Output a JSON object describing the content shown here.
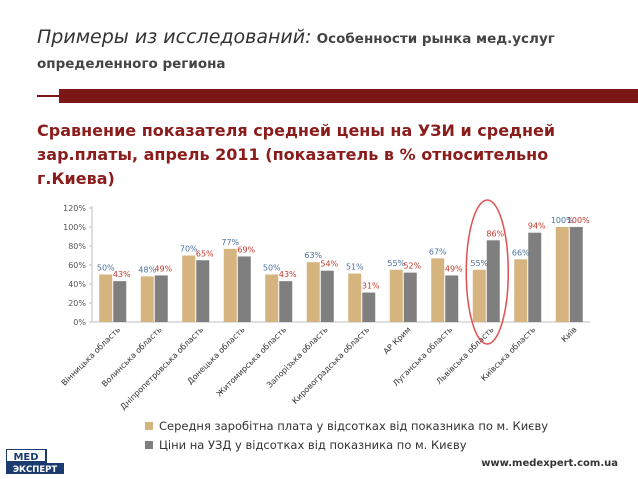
{
  "header": {
    "italic": "Примеры из исследований:",
    "bold": "Особенности рынка мед.услуг",
    "line2": "определенного региона"
  },
  "subtitle": {
    "line1": "Сравнение показателя средней цены на УЗИ и средней",
    "line2": "зар.платы, апрель 2011 (показатель в % относительно",
    "line3": "г.Киева)"
  },
  "colors": {
    "accent": "#7b1717",
    "title": "#8b1c1c",
    "series1": "#d6b47f",
    "series2": "#7f7f7f",
    "label1": "#4a6f9c",
    "label2": "#c0392b",
    "highlight": "#e05050"
  },
  "chart_data": {
    "type": "bar",
    "categories": [
      "Вінницька область",
      "Волинська область",
      "Дніпропетровська область",
      "Донецька область",
      "Житомирська область",
      "Запорізька область",
      "Кировоградська область",
      "АР Крим",
      "Луганська область",
      "Львівська область",
      "Київська область",
      "Київ"
    ],
    "series": [
      {
        "name": "Середня заробітна плата у відсотках від показника по м. Києву",
        "values": [
          50,
          48,
          70,
          77,
          50,
          63,
          51,
          55,
          67,
          55,
          66,
          100
        ],
        "labels": [
          "50%",
          "48%",
          "70%",
          "77%",
          "50%",
          "63%",
          "51%",
          "55%",
          "67%",
          "55%",
          "66%",
          "100%"
        ]
      },
      {
        "name": "Ціни на УЗД у відсотках від показника по м. Києву",
        "values": [
          43,
          49,
          65,
          69,
          43,
          54,
          31,
          52,
          49,
          86,
          94,
          100
        ],
        "labels": [
          "43%",
          "49%",
          "65%",
          "69%",
          "43%",
          "54%",
          "31%",
          "52%",
          "49%",
          "86%",
          "94%",
          "100%"
        ]
      }
    ],
    "yticks": [
      "0%",
      "20%",
      "40%",
      "60%",
      "80%",
      "100%",
      "120%"
    ],
    "ylim": [
      0,
      120
    ],
    "grid": false,
    "highlight_category": "Львівська область",
    "legend": "bottom"
  },
  "logo": {
    "top": "MED",
    "bottom": "ЭКСПЕРТ"
  },
  "footer": {
    "url": "www.medexpert.com.ua"
  }
}
